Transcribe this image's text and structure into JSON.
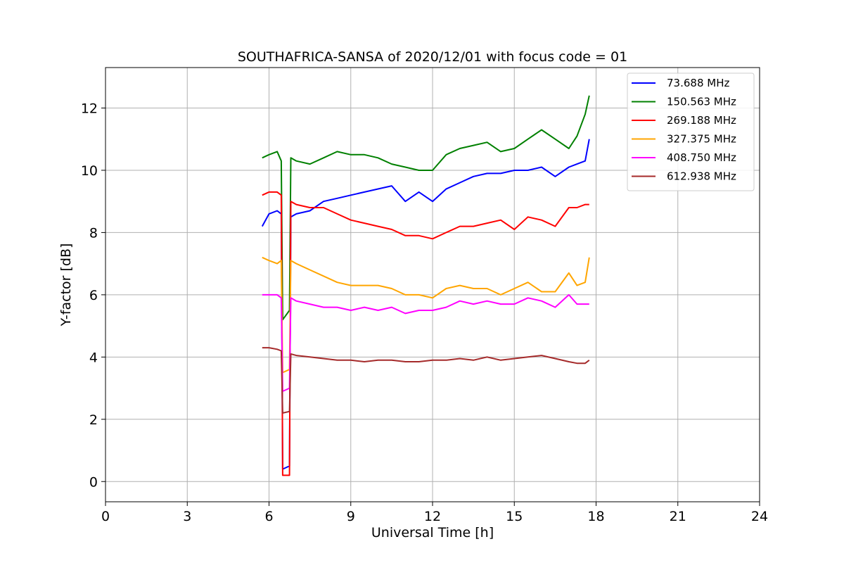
{
  "chart_data": {
    "type": "line",
    "title": "SOUTHAFRICA-SANSA of 2020/12/01 with focus code = 01",
    "xlabel": "Universal Time [h]",
    "ylabel": "Y-factor [dB]",
    "xlim": [
      0,
      24
    ],
    "ylim": [
      -0.65,
      13.3
    ],
    "xticks": [
      0,
      3,
      6,
      9,
      12,
      15,
      18,
      21,
      24
    ],
    "yticks": [
      0,
      2,
      4,
      6,
      8,
      10,
      12
    ],
    "grid": true,
    "legend_position": "top-right",
    "series": [
      {
        "name": " 73.688 MHz",
        "color": "#0000ff",
        "x": [
          5.75,
          6.0,
          6.3,
          6.45,
          6.5,
          6.75,
          6.8,
          7.0,
          7.5,
          8.0,
          8.5,
          9.0,
          9.5,
          10.0,
          10.5,
          11.0,
          11.5,
          12.0,
          12.5,
          13.0,
          13.5,
          14.0,
          14.5,
          15.0,
          15.5,
          16.0,
          16.5,
          17.0,
          17.3,
          17.6,
          17.75
        ],
        "y": [
          8.2,
          8.6,
          8.7,
          8.6,
          0.4,
          0.5,
          8.5,
          8.6,
          8.7,
          9.0,
          9.1,
          9.2,
          9.3,
          9.4,
          9.5,
          9.0,
          9.3,
          9.0,
          9.4,
          9.6,
          9.8,
          9.9,
          9.9,
          10.0,
          10.0,
          10.1,
          9.8,
          10.1,
          10.2,
          10.3,
          11.0
        ]
      },
      {
        "name": "150.563 MHz",
        "color": "#008000",
        "x": [
          5.75,
          6.0,
          6.3,
          6.45,
          6.5,
          6.75,
          6.8,
          7.0,
          7.5,
          8.0,
          8.5,
          9.0,
          9.5,
          10.0,
          10.5,
          11.0,
          11.5,
          12.0,
          12.5,
          13.0,
          13.5,
          14.0,
          14.5,
          15.0,
          15.5,
          16.0,
          16.5,
          17.0,
          17.3,
          17.6,
          17.75
        ],
        "y": [
          10.4,
          10.5,
          10.6,
          10.3,
          5.2,
          5.5,
          10.4,
          10.3,
          10.2,
          10.4,
          10.6,
          10.5,
          10.5,
          10.4,
          10.2,
          10.1,
          10.0,
          10.0,
          10.5,
          10.7,
          10.8,
          10.9,
          10.6,
          10.7,
          11.0,
          11.3,
          11.0,
          10.7,
          11.1,
          11.8,
          12.4
        ]
      },
      {
        "name": "269.188 MHz",
        "color": "#ff0000",
        "x": [
          5.75,
          6.0,
          6.3,
          6.45,
          6.5,
          6.75,
          6.8,
          7.0,
          7.5,
          8.0,
          8.5,
          9.0,
          9.5,
          10.0,
          10.5,
          11.0,
          11.5,
          12.0,
          12.5,
          13.0,
          13.5,
          14.0,
          14.5,
          15.0,
          15.5,
          16.0,
          16.5,
          17.0,
          17.3,
          17.6,
          17.75
        ],
        "y": [
          9.2,
          9.3,
          9.3,
          9.2,
          0.2,
          0.2,
          9.0,
          8.9,
          8.8,
          8.8,
          8.6,
          8.4,
          8.3,
          8.2,
          8.1,
          7.9,
          7.9,
          7.8,
          8.0,
          8.2,
          8.2,
          8.3,
          8.4,
          8.1,
          8.5,
          8.4,
          8.2,
          8.8,
          8.8,
          8.9,
          8.9
        ]
      },
      {
        "name": "327.375 MHz",
        "color": "#ffa500",
        "x": [
          5.75,
          6.0,
          6.3,
          6.45,
          6.5,
          6.75,
          6.8,
          7.0,
          7.5,
          8.0,
          8.5,
          9.0,
          9.5,
          10.0,
          10.5,
          11.0,
          11.5,
          12.0,
          12.5,
          13.0,
          13.5,
          14.0,
          14.5,
          15.0,
          15.5,
          16.0,
          16.5,
          17.0,
          17.3,
          17.6,
          17.75
        ],
        "y": [
          7.2,
          7.1,
          7.0,
          7.1,
          3.5,
          3.6,
          7.1,
          7.0,
          6.8,
          6.6,
          6.4,
          6.3,
          6.3,
          6.3,
          6.2,
          6.0,
          6.0,
          5.9,
          6.2,
          6.3,
          6.2,
          6.2,
          6.0,
          6.2,
          6.4,
          6.1,
          6.1,
          6.7,
          6.3,
          6.4,
          7.2
        ]
      },
      {
        "name": "408.750 MHz",
        "color": "#ff00ff",
        "x": [
          5.75,
          6.0,
          6.3,
          6.45,
          6.5,
          6.75,
          6.8,
          7.0,
          7.5,
          8.0,
          8.5,
          9.0,
          9.5,
          10.0,
          10.5,
          11.0,
          11.5,
          12.0,
          12.5,
          13.0,
          13.5,
          14.0,
          14.5,
          15.0,
          15.5,
          16.0,
          16.5,
          17.0,
          17.3,
          17.6,
          17.75
        ],
        "y": [
          6.0,
          6.0,
          6.0,
          5.9,
          2.9,
          3.0,
          5.9,
          5.8,
          5.7,
          5.6,
          5.6,
          5.5,
          5.6,
          5.5,
          5.6,
          5.4,
          5.5,
          5.5,
          5.6,
          5.8,
          5.7,
          5.8,
          5.7,
          5.7,
          5.9,
          5.8,
          5.6,
          6.0,
          5.7,
          5.7,
          5.7
        ]
      },
      {
        "name": "612.938 MHz",
        "color": "#a52a2a",
        "x": [
          5.75,
          6.0,
          6.3,
          6.45,
          6.5,
          6.75,
          6.8,
          7.0,
          7.5,
          8.0,
          8.5,
          9.0,
          9.5,
          10.0,
          10.5,
          11.0,
          11.5,
          12.0,
          12.5,
          13.0,
          13.5,
          14.0,
          14.5,
          15.0,
          15.5,
          16.0,
          16.5,
          17.0,
          17.3,
          17.6,
          17.75
        ],
        "y": [
          4.3,
          4.3,
          4.25,
          4.2,
          2.2,
          2.25,
          4.1,
          4.05,
          4.0,
          3.95,
          3.9,
          3.9,
          3.85,
          3.9,
          3.9,
          3.85,
          3.85,
          3.9,
          3.9,
          3.95,
          3.9,
          4.0,
          3.9,
          3.95,
          4.0,
          4.05,
          3.95,
          3.85,
          3.8,
          3.8,
          3.9
        ]
      }
    ]
  }
}
